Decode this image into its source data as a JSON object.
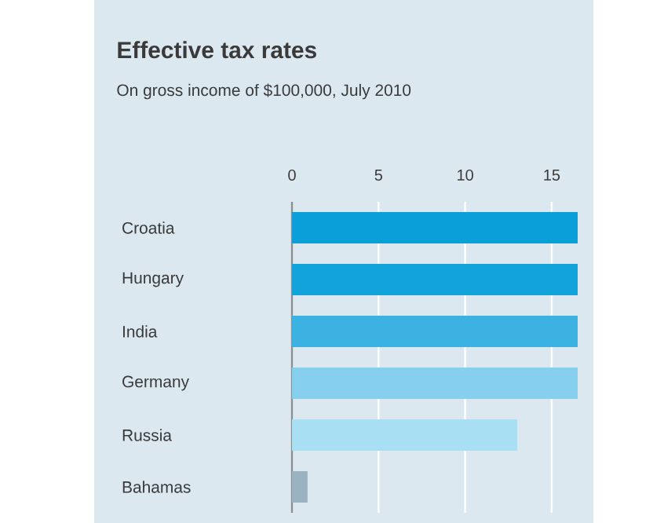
{
  "chart_data": {
    "type": "bar",
    "orientation": "horizontal",
    "title": "Effective tax rates",
    "subtitle": "On gross income of $100,000, July 2010",
    "categories": [
      "Croatia",
      "Hungary",
      "India",
      "Germany",
      "Russia",
      "Bahamas"
    ],
    "values": [
      16.5,
      16.5,
      16.5,
      16.5,
      13.0,
      0.9
    ],
    "colors": [
      "#0a9fd8",
      "#12a3da",
      "#3bb2e2",
      "#86d0ee",
      "#a9dff3",
      "#9bb3c0"
    ],
    "xlim": [
      0,
      16.5
    ],
    "xticks": [
      0,
      5,
      10,
      15
    ],
    "grid": "x"
  }
}
